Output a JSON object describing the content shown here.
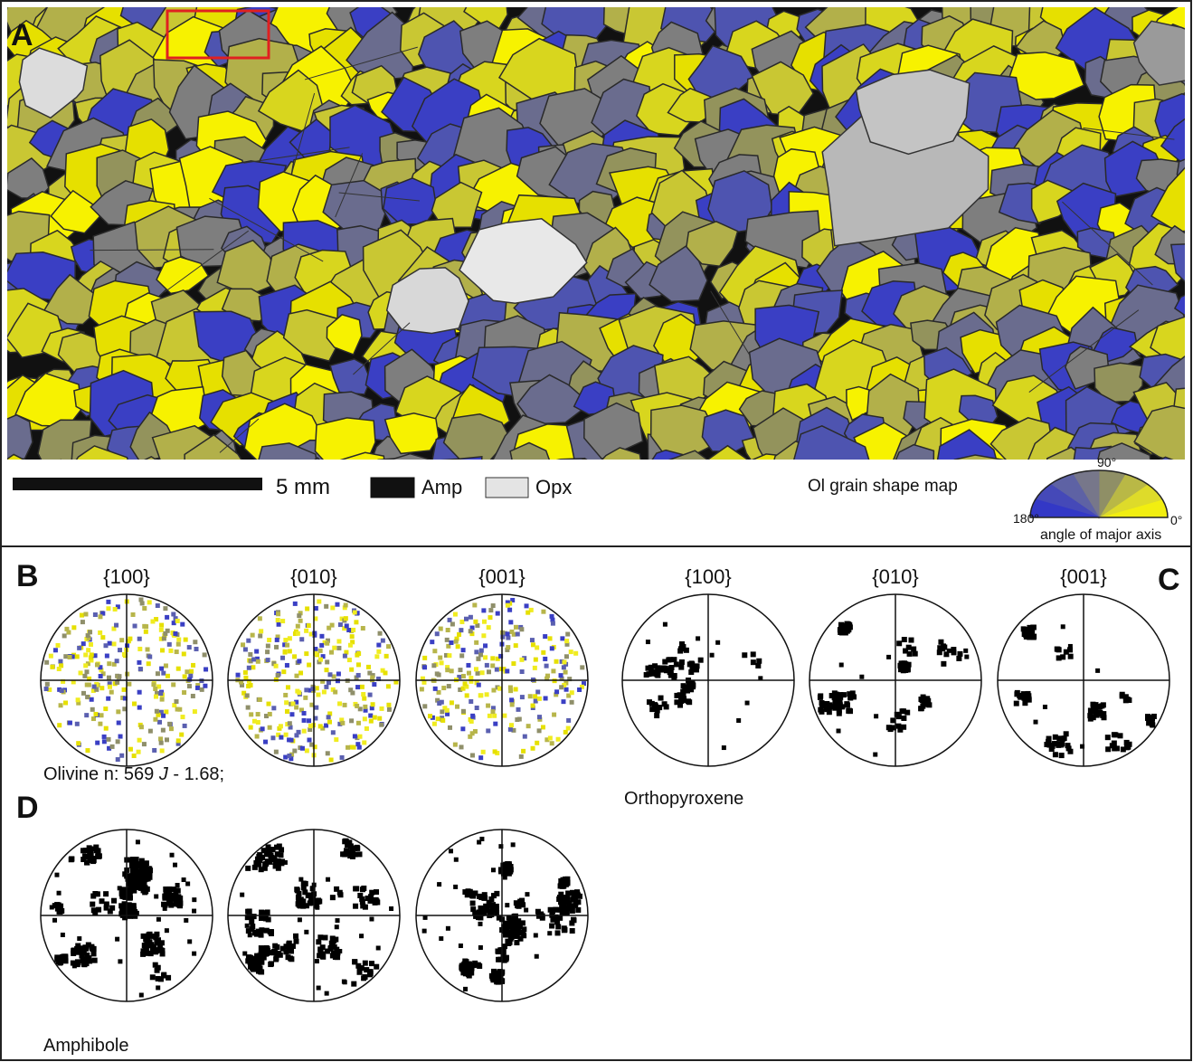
{
  "panel_a": {
    "label": "A",
    "scale_bar": "5 mm",
    "legend": [
      {
        "label": "Amp"
      },
      {
        "label": "Opx"
      }
    ],
    "shape_map_title": "Ol grain shape map",
    "angle_labels": {
      "top": "90°",
      "left": "180°",
      "right": "0°"
    },
    "angle_caption": "angle of major axis"
  },
  "panel_b": {
    "label": "B",
    "planes": [
      "{100}",
      "{010}",
      "{001}"
    ],
    "caption": {
      "prefix": "Olivine n: 569 ",
      "italic": "J",
      "suffix": " - 1.68;"
    }
  },
  "panel_c": {
    "label": "C",
    "planes": [
      "{100}",
      "{010}",
      "{001}"
    ],
    "caption": "Orthopyroxene"
  },
  "panel_d": {
    "label": "D",
    "caption": "Amphibole"
  }
}
